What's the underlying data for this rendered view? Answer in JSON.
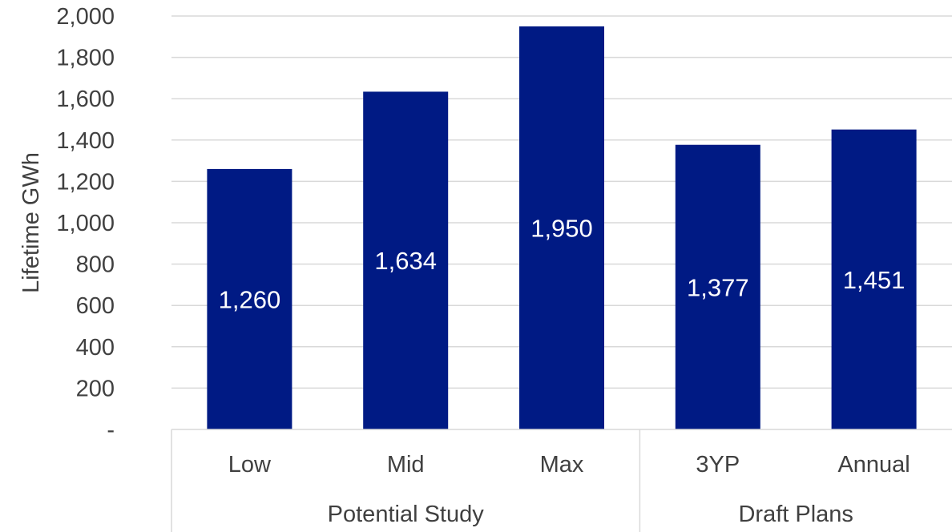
{
  "chart_data": {
    "type": "bar",
    "ylabel": "Lifetime GWh",
    "ylim": [
      0,
      2000
    ],
    "yticks": [
      {
        "value": 0,
        "label": "-"
      },
      {
        "value": 200,
        "label": "200"
      },
      {
        "value": 400,
        "label": "400"
      },
      {
        "value": 600,
        "label": "600"
      },
      {
        "value": 800,
        "label": "800"
      },
      {
        "value": 1000,
        "label": "1,000"
      },
      {
        "value": 1200,
        "label": "1,200"
      },
      {
        "value": 1400,
        "label": "1,400"
      },
      {
        "value": 1600,
        "label": "1,600"
      },
      {
        "value": 1800,
        "label": "1,800"
      },
      {
        "value": 2000,
        "label": "2,000"
      }
    ],
    "categories": [
      "Low",
      "Mid",
      "Max",
      "3YP",
      "Annual"
    ],
    "groups": [
      {
        "label": "Potential Study",
        "categories": [
          "Low",
          "Mid",
          "Max"
        ]
      },
      {
        "label": "Draft Plans",
        "categories": [
          "3YP",
          "Annual"
        ]
      }
    ],
    "values": [
      1260,
      1634,
      1950,
      1377,
      1451
    ],
    "data_labels": [
      "1,260",
      "1,634",
      "1,950",
      "1,377",
      "1,451"
    ],
    "grid": true,
    "colors": {
      "bar": "#001a84",
      "grid": "#d9d9d9",
      "text": "#404040",
      "data_label": "#ffffff"
    }
  }
}
